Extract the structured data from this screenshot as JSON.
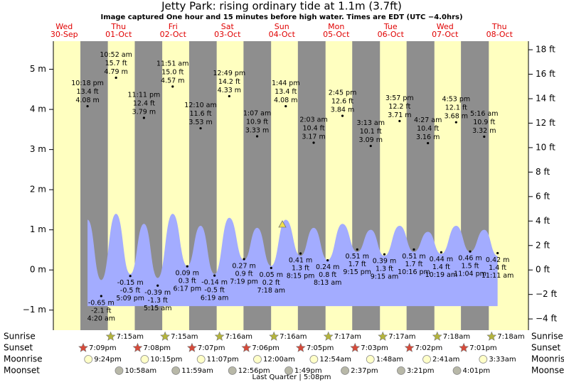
{
  "title": "Jetty Park: rising  ordinary tide at 1.1m (3.7ft)",
  "subtitle": "Image captured One hour and 15 minutes before high water. Times are EDT (UTC −4.0hrs)",
  "chart_data": {
    "type": "area",
    "ylim": [
      -1.5,
      5.7
    ],
    "yticks": [
      {
        "value": -1,
        "label": "−1 m"
      },
      {
        "value": 0,
        "label": "0 m"
      },
      {
        "value": 1,
        "label": "1 m"
      },
      {
        "value": 2,
        "label": "2 m"
      },
      {
        "value": 3,
        "label": "3 m"
      },
      {
        "value": 4,
        "label": "4 m"
      },
      {
        "value": 5,
        "label": "5 m"
      }
    ],
    "y2lim": [
      -4.92,
      18.7
    ],
    "y2ticks": [
      {
        "value": -4,
        "label": "−4 ft"
      },
      {
        "value": -2,
        "label": "−2 ft"
      },
      {
        "value": 0,
        "label": "0 ft"
      },
      {
        "value": 2,
        "label": "2 ft"
      },
      {
        "value": 4,
        "label": "4 ft"
      },
      {
        "value": 6,
        "label": "6 ft"
      },
      {
        "value": 8,
        "label": "8 ft"
      },
      {
        "value": 10,
        "label": "10 ft"
      },
      {
        "value": 12,
        "label": "12 ft"
      },
      {
        "value": 14,
        "label": "14 ft"
      },
      {
        "value": 16,
        "label": "16 ft"
      },
      {
        "value": 18,
        "label": "18 ft"
      }
    ],
    "color": "#a3acff",
    "days": [
      {
        "weekday": "Wed",
        "date": "30-Sep",
        "sunrise": null,
        "sunset": "7:09pm",
        "moonrise": "9:24pm",
        "moonset": null,
        "events": [
          {
            "time": "10:18 pm",
            "ft": 13.4,
            "ft_label": "13.4 ft",
            "m": 4.08,
            "m_label": "4.08 m",
            "curve": 1.25
          }
        ]
      },
      {
        "weekday": "Thu",
        "date": "01-Oct",
        "sunrise": "7:15am",
        "sunset": "7:08pm",
        "moonrise": "10:15pm",
        "moonset": "10:58am",
        "events": [
          {
            "time": "4:20 am",
            "ft": -2.1,
            "ft_label": "-2.1 ft",
            "m": -0.65,
            "m_label": "-0.65 m",
            "curve": -0.25
          },
          {
            "time": "10:52 am",
            "ft": 15.7,
            "ft_label": "15.7 ft",
            "m": 4.79,
            "m_label": "4.79 m",
            "curve": 1.4
          },
          {
            "time": "5:09 pm",
            "ft": -0.5,
            "ft_label": "-0.5 ft",
            "m": -0.15,
            "m_label": "-0.15 m",
            "curve": -0.1
          },
          {
            "time": "11:11 pm",
            "ft": 12.4,
            "ft_label": "12.4 ft",
            "m": 3.79,
            "m_label": "3.79 m",
            "curve": 1.15
          }
        ]
      },
      {
        "weekday": "Fri",
        "date": "02-Oct",
        "sunrise": "7:15am",
        "sunset": "7:07pm",
        "moonrise": "11:07pm",
        "moonset": "11:59am",
        "events": [
          {
            "time": "5:15 am",
            "ft": -1.3,
            "ft_label": "-1.3 ft",
            "m": -0.39,
            "m_label": "-0.39 m",
            "curve": -0.2
          },
          {
            "time": "11:51 am",
            "ft": 15.0,
            "ft_label": "15.0 ft",
            "m": 4.57,
            "m_label": "4.57 m",
            "curve": 1.4
          },
          {
            "time": "6:17 pm",
            "ft": 0.3,
            "ft_label": "0.3 ft",
            "m": 0.09,
            "m_label": "0.09 m",
            "curve": 0.1
          }
        ]
      },
      {
        "weekday": "Sat",
        "date": "03-Oct",
        "sunrise": "7:16am",
        "sunset": "7:06pm",
        "moonrise": null,
        "moonset": "12:56pm",
        "events": [
          {
            "time": "12:10 am",
            "ft": 11.6,
            "ft_label": "11.6 ft",
            "m": 3.53,
            "m_label": "3.53 m",
            "curve": 1.1
          },
          {
            "time": "6:19 am",
            "ft": -0.5,
            "ft_label": "-0.5 ft",
            "m": -0.14,
            "m_label": "-0.14 m",
            "curve": -0.1
          },
          {
            "time": "12:49 pm",
            "ft": 14.2,
            "ft_label": "14.2 ft",
            "m": 4.33,
            "m_label": "4.33 m",
            "curve": 1.3
          },
          {
            "time": "7:19 pm",
            "ft": 0.9,
            "ft_label": "0.9 ft",
            "m": 0.27,
            "m_label": "0.27 m",
            "curve": 0.25
          }
        ]
      },
      {
        "weekday": "Sun",
        "date": "04-Oct",
        "sunrise": "7:16am",
        "sunset": "7:05pm",
        "moonrise": "12:00am",
        "moonset": "1:49pm",
        "events": [
          {
            "time": "1:07 am",
            "ft": 10.9,
            "ft_label": "10.9 ft",
            "m": 3.33,
            "m_label": "3.33 m",
            "curve": 1.05
          },
          {
            "time": "7:18 am",
            "ft": 0.2,
            "ft_label": "0.2 ft",
            "m": 0.05,
            "m_label": "0.05 m",
            "curve": 0.1
          },
          {
            "time": "1:44 pm",
            "ft": 13.4,
            "ft_label": "13.4 ft",
            "m": 4.08,
            "m_label": "4.08 m",
            "curve": 1.25
          },
          {
            "time": "8:15 pm",
            "ft": 1.3,
            "ft_label": "1.3 ft",
            "m": 0.41,
            "m_label": "0.41 m",
            "curve": 0.35
          }
        ]
      },
      {
        "weekday": "Mon",
        "date": "05-Oct",
        "sunrise": "7:17am",
        "sunset": "7:03pm",
        "moonrise": "12:54am",
        "moonset": "2:37pm",
        "events": [
          {
            "time": "2:03 am",
            "ft": 10.4,
            "ft_label": "10.4 ft",
            "m": 3.17,
            "m_label": "3.17 m",
            "curve": 1.05
          },
          {
            "time": "8:13 am",
            "ft": 0.8,
            "ft_label": "0.8 ft",
            "m": 0.24,
            "m_label": "0.24 m",
            "curve": 0.25
          },
          {
            "time": "2:45 pm",
            "ft": 12.6,
            "ft_label": "12.6 ft",
            "m": 3.84,
            "m_label": "3.84 m",
            "curve": 1.15
          },
          {
            "time": "9:15 pm",
            "ft": 1.7,
            "ft_label": "1.7 ft",
            "m": 0.51,
            "m_label": "0.51 m",
            "curve": 0.45
          }
        ]
      },
      {
        "weekday": "Tue",
        "date": "06-Oct",
        "sunrise": "7:17am",
        "sunset": "7:02pm",
        "moonrise": "1:48am",
        "moonset": "3:21pm",
        "events": [
          {
            "time": "3:13 am",
            "ft": 10.1,
            "ft_label": "10.1 ft",
            "m": 3.09,
            "m_label": "3.09 m",
            "curve": 1.0
          },
          {
            "time": "9:15 am",
            "ft": 1.3,
            "ft_label": "1.3 ft",
            "m": 0.39,
            "m_label": "0.39 m",
            "curve": 0.35
          },
          {
            "time": "3:57 pm",
            "ft": 12.2,
            "ft_label": "12.2 ft",
            "m": 3.71,
            "m_label": "3.71 m",
            "curve": 1.1
          },
          {
            "time": "10:16 pm",
            "ft": 1.7,
            "ft_label": "1.7 ft",
            "m": 0.51,
            "m_label": "0.51 m",
            "curve": 0.45
          }
        ]
      },
      {
        "weekday": "Wed",
        "date": "07-Oct",
        "sunrise": "7:18am",
        "sunset": "7:01pm",
        "moonrise": "2:41am",
        "moonset": "4:01pm",
        "events": [
          {
            "time": "4:27 am",
            "ft": 10.4,
            "ft_label": "10.4 ft",
            "m": 3.16,
            "m_label": "3.16 m",
            "curve": 0.95
          },
          {
            "time": "10:19 am",
            "ft": 1.4,
            "ft_label": "1.4 ft",
            "m": 0.44,
            "m_label": "0.44 m",
            "curve": 0.4
          },
          {
            "time": "4:53 pm",
            "ft": 12.1,
            "ft_label": "12.1 ft",
            "m": 3.68,
            "m_label": "3.68 m",
            "curve": 1.1
          },
          {
            "time": "11:04 pm",
            "ft": 1.5,
            "ft_label": "1.5 ft",
            "m": 0.46,
            "m_label": "0.46 m",
            "curve": 0.45
          }
        ]
      },
      {
        "weekday": "Thu",
        "date": "08-Oct",
        "sunrise": "7:18am",
        "sunset": null,
        "moonrise": "3:33am",
        "moonset": null,
        "events": [
          {
            "time": "5:16 am",
            "ft": 10.9,
            "ft_label": "10.9 ft",
            "m": 3.32,
            "m_label": "3.32 m",
            "curve": 1.0
          },
          {
            "time": "11:11 am",
            "ft": 1.4,
            "ft_label": "1.4 ft",
            "m": 0.42,
            "m_label": "0.42 m",
            "curve": 0.35
          }
        ]
      }
    ]
  },
  "rows": {
    "sunrise": "Sunrise",
    "sunset": "Sunset",
    "moonrise": "Moonrise",
    "moonset": "Moonset"
  },
  "moon_phase": "Last Quarter | 5:08pm"
}
